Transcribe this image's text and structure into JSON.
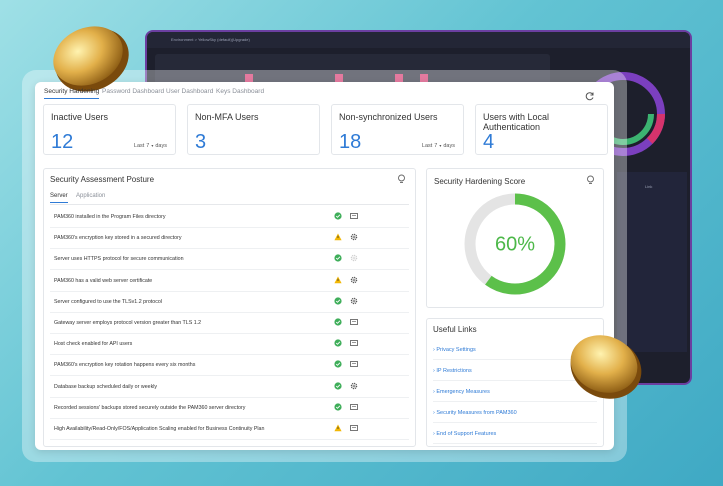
{
  "background": {
    "breadcrumb": "Environment  >  YellowSky (default)(Upgrade)",
    "column": "Link"
  },
  "tabs": [
    {
      "label": "Security Hardening",
      "active": true
    },
    {
      "label": "Password Dashboard",
      "active": false
    },
    {
      "label": "User Dashboard",
      "active": false
    },
    {
      "label": "Keys Dashboard",
      "active": false
    }
  ],
  "stats": [
    {
      "title": "Inactive Users",
      "value": "12",
      "period": {
        "prefix": "Last",
        "value": "7",
        "suffix": "days"
      }
    },
    {
      "title": "Non-MFA Users",
      "value": "3"
    },
    {
      "title": "Non-synchronized Users",
      "value": "18",
      "period": {
        "prefix": "Last",
        "value": "7",
        "suffix": "days"
      }
    },
    {
      "title": "Users with Local Authentication",
      "value": "4"
    }
  ],
  "assessment": {
    "title": "Security Assessment Posture",
    "tabs": [
      {
        "label": "Server",
        "active": true
      },
      {
        "label": "Application",
        "active": false
      }
    ],
    "rows": [
      {
        "text": "PAM360 installed in the Program Files directory",
        "status": "pass",
        "action": "report"
      },
      {
        "text": "PAM360's encryption key stored in a secured directory",
        "status": "warn",
        "action": "settings"
      },
      {
        "text": "Server uses HTTPS protocol for secure communication",
        "status": "pass",
        "action": "disabled"
      },
      {
        "text": "PAM360 has a valid web server certificate",
        "status": "warn",
        "action": "settings"
      },
      {
        "text": "Server configured to use the TLSv1.2 protocol",
        "status": "pass",
        "action": "settings"
      },
      {
        "text": "Gateway server employs protocol version greater than TLS 1.2",
        "status": "pass",
        "action": "report"
      },
      {
        "text": "Host check enabled for API users",
        "status": "pass",
        "action": "report"
      },
      {
        "text": "PAM360's encryption key rotation happens every six months",
        "status": "pass",
        "action": "report"
      },
      {
        "text": "Database backup scheduled daily or weekly",
        "status": "pass",
        "action": "settings"
      },
      {
        "text": "Recorded sessions' backups stored securely outside the PAM360 server directory",
        "status": "pass",
        "action": "report"
      },
      {
        "text": "High Availability/Read-Only/FOS/Application Scaling enabled for Business Continuity Plan",
        "status": "warn",
        "action": "report"
      }
    ]
  },
  "score": {
    "title": "Security Hardening Score",
    "value": {
      "value": 60,
      "label": "60%"
    },
    "color": "#5cc04a"
  },
  "links": {
    "title": "Useful Links",
    "items": [
      "› Privacy Settings",
      "› IP Restrictions",
      "› Emergency Measures",
      "› Security Measures from PAM360",
      "› End of Support Features"
    ]
  }
}
